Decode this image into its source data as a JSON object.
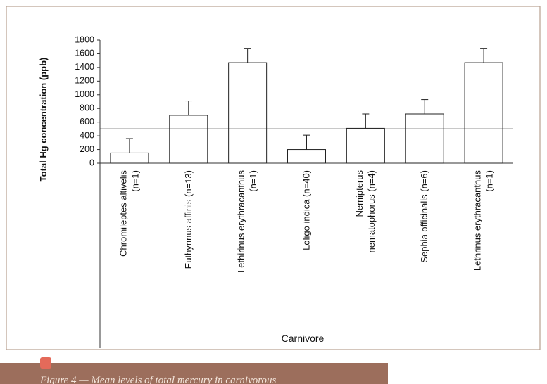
{
  "chart_data": {
    "type": "bar",
    "y_label": "Total Hg concentration (ppb)",
    "x_label": "Carnivore",
    "categories": [
      [
        "Chromileptes altivelis",
        "(n=1)"
      ],
      [
        "Euthynnus affinis (n=13)"
      ],
      [
        "Lethirinus erythracanthus",
        "(n=1)"
      ],
      [
        "Loligo indica (n=40)"
      ],
      [
        "Nemipterus",
        "nematophorus (n=4)"
      ],
      [
        "Sephia officinalis (n=6)"
      ],
      [
        "Lethrinus erythracanthus",
        "(n=1)"
      ]
    ],
    "values": [
      150,
      700,
      1470,
      200,
      510,
      720,
      1470
    ],
    "errors": [
      210,
      210,
      210,
      210,
      210,
      210,
      210
    ],
    "reference_line": 500,
    "color": "#ffffff",
    "ylim": [
      0,
      1800
    ],
    "yticks": [
      0,
      200,
      400,
      600,
      800,
      1000,
      1200,
      1400,
      1600,
      1800
    ],
    "caption": "Figure 4 — Mean levels of total mercury in carnivorous"
  }
}
